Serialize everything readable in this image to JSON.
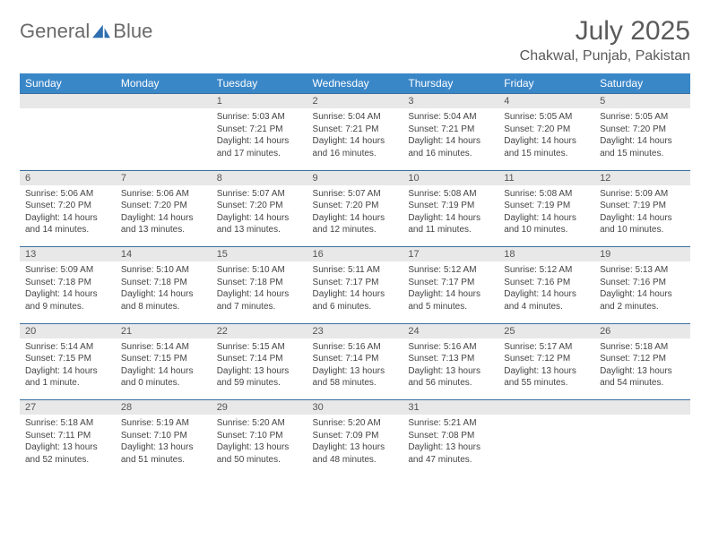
{
  "logo": {
    "text1": "General",
    "text2": "Blue",
    "icon_color": "#2f6fb0"
  },
  "title": "July 2025",
  "location": "Chakwal, Punjab, Pakistan",
  "header_bg": "#3a87c8",
  "daynum_bg": "#e8e8e8",
  "border_color": "#3a6fa0",
  "days": [
    "Sunday",
    "Monday",
    "Tuesday",
    "Wednesday",
    "Thursday",
    "Friday",
    "Saturday"
  ],
  "weeks": [
    {
      "nums": [
        "",
        "",
        "1",
        "2",
        "3",
        "4",
        "5"
      ],
      "cells": [
        "",
        "",
        "Sunrise: 5:03 AM\nSunset: 7:21 PM\nDaylight: 14 hours\nand 17 minutes.",
        "Sunrise: 5:04 AM\nSunset: 7:21 PM\nDaylight: 14 hours\nand 16 minutes.",
        "Sunrise: 5:04 AM\nSunset: 7:21 PM\nDaylight: 14 hours\nand 16 minutes.",
        "Sunrise: 5:05 AM\nSunset: 7:20 PM\nDaylight: 14 hours\nand 15 minutes.",
        "Sunrise: 5:05 AM\nSunset: 7:20 PM\nDaylight: 14 hours\nand 15 minutes."
      ]
    },
    {
      "nums": [
        "6",
        "7",
        "8",
        "9",
        "10",
        "11",
        "12"
      ],
      "cells": [
        "Sunrise: 5:06 AM\nSunset: 7:20 PM\nDaylight: 14 hours\nand 14 minutes.",
        "Sunrise: 5:06 AM\nSunset: 7:20 PM\nDaylight: 14 hours\nand 13 minutes.",
        "Sunrise: 5:07 AM\nSunset: 7:20 PM\nDaylight: 14 hours\nand 13 minutes.",
        "Sunrise: 5:07 AM\nSunset: 7:20 PM\nDaylight: 14 hours\nand 12 minutes.",
        "Sunrise: 5:08 AM\nSunset: 7:19 PM\nDaylight: 14 hours\nand 11 minutes.",
        "Sunrise: 5:08 AM\nSunset: 7:19 PM\nDaylight: 14 hours\nand 10 minutes.",
        "Sunrise: 5:09 AM\nSunset: 7:19 PM\nDaylight: 14 hours\nand 10 minutes."
      ]
    },
    {
      "nums": [
        "13",
        "14",
        "15",
        "16",
        "17",
        "18",
        "19"
      ],
      "cells": [
        "Sunrise: 5:09 AM\nSunset: 7:18 PM\nDaylight: 14 hours\nand 9 minutes.",
        "Sunrise: 5:10 AM\nSunset: 7:18 PM\nDaylight: 14 hours\nand 8 minutes.",
        "Sunrise: 5:10 AM\nSunset: 7:18 PM\nDaylight: 14 hours\nand 7 minutes.",
        "Sunrise: 5:11 AM\nSunset: 7:17 PM\nDaylight: 14 hours\nand 6 minutes.",
        "Sunrise: 5:12 AM\nSunset: 7:17 PM\nDaylight: 14 hours\nand 5 minutes.",
        "Sunrise: 5:12 AM\nSunset: 7:16 PM\nDaylight: 14 hours\nand 4 minutes.",
        "Sunrise: 5:13 AM\nSunset: 7:16 PM\nDaylight: 14 hours\nand 2 minutes."
      ]
    },
    {
      "nums": [
        "20",
        "21",
        "22",
        "23",
        "24",
        "25",
        "26"
      ],
      "cells": [
        "Sunrise: 5:14 AM\nSunset: 7:15 PM\nDaylight: 14 hours\nand 1 minute.",
        "Sunrise: 5:14 AM\nSunset: 7:15 PM\nDaylight: 14 hours\nand 0 minutes.",
        "Sunrise: 5:15 AM\nSunset: 7:14 PM\nDaylight: 13 hours\nand 59 minutes.",
        "Sunrise: 5:16 AM\nSunset: 7:14 PM\nDaylight: 13 hours\nand 58 minutes.",
        "Sunrise: 5:16 AM\nSunset: 7:13 PM\nDaylight: 13 hours\nand 56 minutes.",
        "Sunrise: 5:17 AM\nSunset: 7:12 PM\nDaylight: 13 hours\nand 55 minutes.",
        "Sunrise: 5:18 AM\nSunset: 7:12 PM\nDaylight: 13 hours\nand 54 minutes."
      ]
    },
    {
      "nums": [
        "27",
        "28",
        "29",
        "30",
        "31",
        "",
        ""
      ],
      "cells": [
        "Sunrise: 5:18 AM\nSunset: 7:11 PM\nDaylight: 13 hours\nand 52 minutes.",
        "Sunrise: 5:19 AM\nSunset: 7:10 PM\nDaylight: 13 hours\nand 51 minutes.",
        "Sunrise: 5:20 AM\nSunset: 7:10 PM\nDaylight: 13 hours\nand 50 minutes.",
        "Sunrise: 5:20 AM\nSunset: 7:09 PM\nDaylight: 13 hours\nand 48 minutes.",
        "Sunrise: 5:21 AM\nSunset: 7:08 PM\nDaylight: 13 hours\nand 47 minutes.",
        "",
        ""
      ]
    }
  ]
}
